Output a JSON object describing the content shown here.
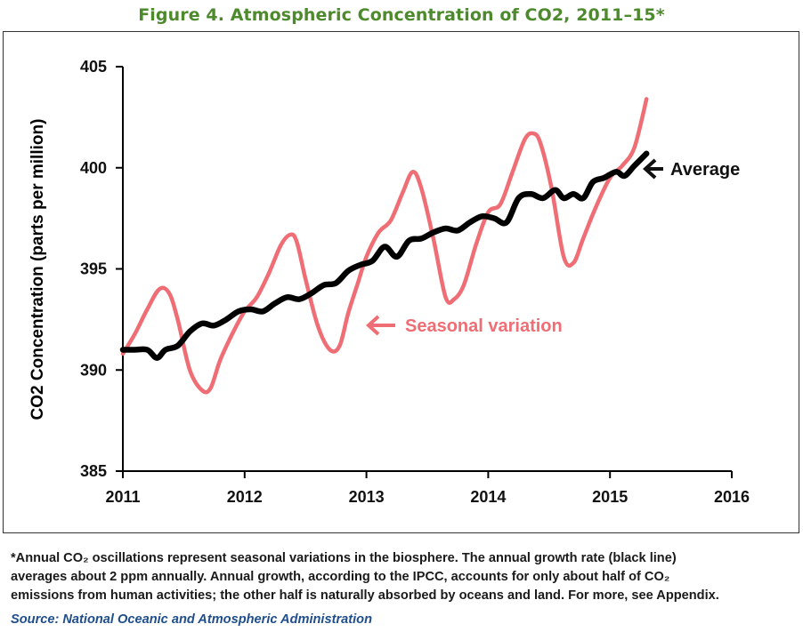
{
  "figure": {
    "title": "Figure 4.  Atmospheric Concentration of CO2, 2011–15*"
  },
  "footnote": {
    "line1": "*Annual CO₂ oscillations represent seasonal variations in the biosphere. The annual growth rate (black line)",
    "line2": "averages about 2 ppm annually. Annual growth, according to the IPCC, accounts for only about half of CO₂",
    "line3": "emissions from human activities; the other half is naturally absorbed by oceans and land. For more, see Appendix."
  },
  "source": {
    "text": "Source: National Oceanic and Atmospheric Administration"
  },
  "chart_data": {
    "type": "line",
    "title": "",
    "xlabel": "",
    "ylabel": "CO2 Concentration (parts per million)",
    "xlim": [
      2011,
      2016
    ],
    "ylim": [
      385,
      405
    ],
    "x_ticks": [
      2011,
      2012,
      2013,
      2014,
      2015,
      2016
    ],
    "y_ticks": [
      385,
      390,
      395,
      400,
      405
    ],
    "grid": false,
    "legend": "none",
    "annotations": [
      {
        "text": "Average",
        "color": "#111111",
        "points_to": "Average"
      },
      {
        "text": "Seasonal variation",
        "color": "#ef6d74",
        "points_to": "Seasonal variation"
      }
    ],
    "series": [
      {
        "name": "Seasonal variation",
        "color": "#ef6d74",
        "x": [
          2011.0,
          2011.1,
          2011.2,
          2011.3,
          2011.38,
          2011.45,
          2011.55,
          2011.65,
          2011.72,
          2011.8,
          2011.9,
          2012.0,
          2012.1,
          2012.2,
          2012.3,
          2012.38,
          2012.43,
          2012.5,
          2012.6,
          2012.7,
          2012.78,
          2012.85,
          2012.93,
          2013.0,
          2013.1,
          2013.2,
          2013.3,
          2013.38,
          2013.45,
          2013.55,
          2013.65,
          2013.72,
          2013.8,
          2013.9,
          2014.0,
          2014.1,
          2014.2,
          2014.3,
          2014.37,
          2014.43,
          2014.52,
          2014.62,
          2014.7,
          2014.78,
          2014.88,
          2015.0,
          2015.1,
          2015.2,
          2015.3
        ],
        "values": [
          390.8,
          391.8,
          393.0,
          394.0,
          393.8,
          392.5,
          390.0,
          389.0,
          389.1,
          390.5,
          391.8,
          392.9,
          393.6,
          394.8,
          396.2,
          396.7,
          396.3,
          394.5,
          392.2,
          391.0,
          391.2,
          392.8,
          394.3,
          395.6,
          396.8,
          397.4,
          398.8,
          399.8,
          399.0,
          396.5,
          393.6,
          393.5,
          394.2,
          396.2,
          397.8,
          398.2,
          399.8,
          401.4,
          401.7,
          401.2,
          399.0,
          395.6,
          395.3,
          396.5,
          398.0,
          399.5,
          400.1,
          401.0,
          403.4
        ]
      },
      {
        "name": "Average",
        "color": "#000000",
        "x": [
          2011.0,
          2011.1,
          2011.2,
          2011.28,
          2011.35,
          2011.45,
          2011.55,
          2011.65,
          2011.75,
          2011.85,
          2011.95,
          2012.05,
          2012.15,
          2012.25,
          2012.35,
          2012.45,
          2012.55,
          2012.65,
          2012.75,
          2012.85,
          2012.95,
          2013.05,
          2013.15,
          2013.25,
          2013.35,
          2013.45,
          2013.55,
          2013.65,
          2013.75,
          2013.85,
          2013.95,
          2014.05,
          2014.15,
          2014.25,
          2014.35,
          2014.45,
          2014.55,
          2014.62,
          2014.7,
          2014.78,
          2014.86,
          2014.95,
          2015.05,
          2015.12,
          2015.2,
          2015.3
        ],
        "values": [
          391.0,
          391.0,
          391.0,
          390.6,
          391.0,
          391.2,
          391.9,
          392.3,
          392.2,
          392.5,
          392.9,
          393.0,
          392.9,
          393.3,
          393.6,
          393.5,
          393.8,
          394.2,
          394.3,
          394.9,
          395.2,
          395.4,
          396.1,
          395.6,
          396.4,
          396.5,
          396.8,
          397.0,
          396.9,
          397.3,
          397.6,
          397.5,
          397.3,
          398.5,
          398.7,
          398.5,
          398.9,
          398.5,
          398.7,
          398.5,
          399.3,
          399.5,
          399.8,
          399.6,
          400.1,
          400.7
        ]
      }
    ]
  }
}
